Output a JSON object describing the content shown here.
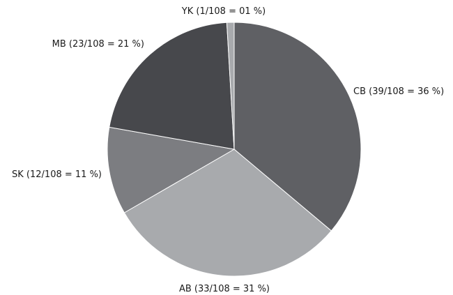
{
  "chart_data": {
    "type": "pie",
    "title": "",
    "total": 108,
    "slices": [
      {
        "category": "CB",
        "count": 39,
        "percent": 36,
        "label": "CB (39/108 = 36 %)",
        "color": "#5f6064"
      },
      {
        "category": "AB",
        "count": 33,
        "percent": 31,
        "label": "AB (33/108 = 31 %)",
        "color": "#a8aaad"
      },
      {
        "category": "SK",
        "count": 12,
        "percent": 11,
        "label": "SK (12/108 = 11 %)",
        "color": "#7c7d81"
      },
      {
        "category": "MB",
        "count": 23,
        "percent": 21,
        "label": "MB (23/108 = 21 %)",
        "color": "#47484c"
      },
      {
        "category": "YK",
        "count": 1,
        "percent": 1,
        "label": "YK (1/108 = 01 %)",
        "color": "#a8aaad"
      }
    ],
    "start_angle_deg": 0,
    "direction": "clockwise",
    "legend": "none"
  }
}
